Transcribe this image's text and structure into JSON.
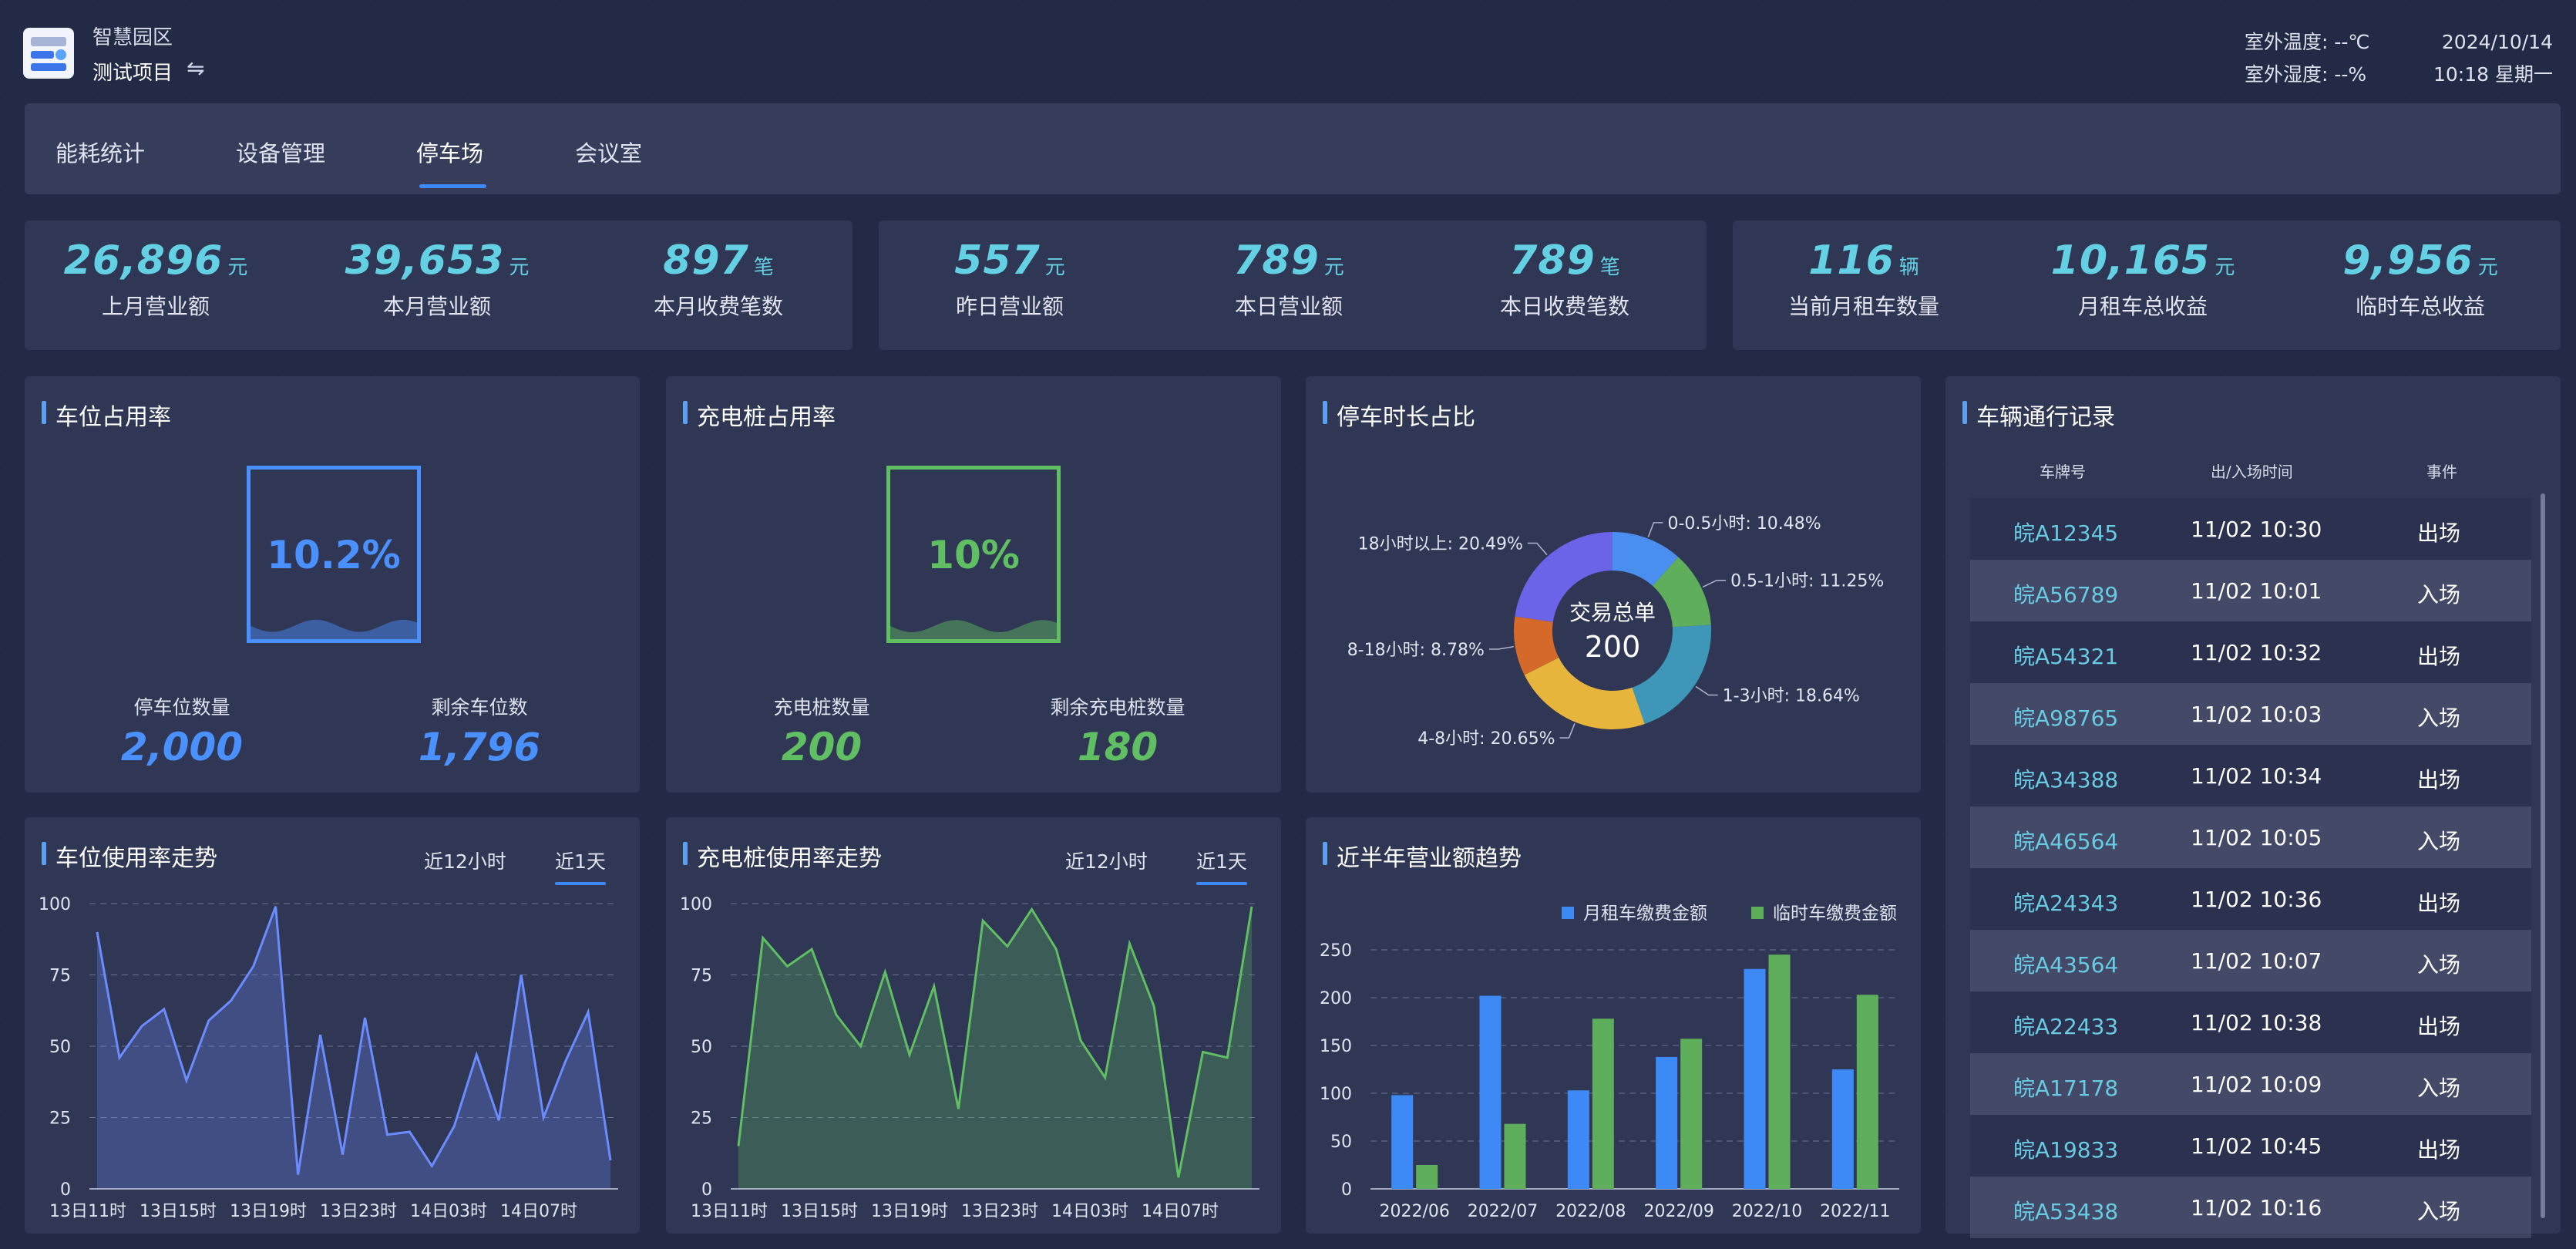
{
  "app": {
    "title": "智慧园区",
    "project": "测试项目",
    "swap_icon": "⇋"
  },
  "weather": {
    "temp_label": "室外温度:",
    "temp_value": "--℃",
    "humidity_label": "室外湿度:",
    "humidity_value": "--%",
    "date": "2024/10/14",
    "time_week": "10:18 星期一"
  },
  "tabs": [
    {
      "label": "能耗统计",
      "active": false
    },
    {
      "label": "设备管理",
      "active": false
    },
    {
      "label": "停车场",
      "active": true
    },
    {
      "label": "会议室",
      "active": false
    }
  ],
  "kpis": [
    {
      "value": "26,896",
      "unit": "元",
      "label": "上月营业额"
    },
    {
      "value": "39,653",
      "unit": "元",
      "label": "本月营业额"
    },
    {
      "value": "897",
      "unit": "笔",
      "label": "本月收费笔数"
    },
    {
      "value": "557",
      "unit": "元",
      "label": "昨日营业额"
    },
    {
      "value": "789",
      "unit": "元",
      "label": "本日营业额"
    },
    {
      "value": "789",
      "unit": "笔",
      "label": "本日收费笔数"
    },
    {
      "value": "116",
      "unit": "辆",
      "label": "当前月租车数量"
    },
    {
      "value": "10,165",
      "unit": "元",
      "label": "月租车总收益"
    },
    {
      "value": "9,956",
      "unit": "元",
      "label": "临时车总收益"
    }
  ],
  "parking_occupancy": {
    "title": "车位占用率",
    "percent_text": "10.2%",
    "fill_fraction": 0.102,
    "total_label": "停车位数量",
    "total_value": "2,000",
    "remain_label": "剩余车位数",
    "remain_value": "1,796",
    "color": "#4a90ff"
  },
  "charger_occupancy": {
    "title": "充电桩占用率",
    "percent_text": "10%",
    "fill_fraction": 0.1,
    "total_label": "充电桩数量",
    "total_value": "200",
    "remain_label": "剩余充电桩数量",
    "remain_value": "180",
    "color": "#5fbf62"
  },
  "duration_share": {
    "title": "停车时长占比",
    "center_label": "交易总单",
    "center_value": "200"
  },
  "parking_trend": {
    "title": "车位使用率走势",
    "toggle_12h": "近12小时",
    "toggle_1d": "近1天"
  },
  "charger_trend": {
    "title": "充电桩使用率走势",
    "toggle_12h": "近12小时",
    "toggle_1d": "近1天"
  },
  "revenue_trend": {
    "title": "近半年营业额趋势"
  },
  "records": {
    "title": "车辆通行记录",
    "headers": {
      "plate": "车牌号",
      "time": "出/入场时间",
      "event": "事件"
    },
    "rows": [
      {
        "plate": "皖A12345",
        "time": "11/02 10:30",
        "event": "出场"
      },
      {
        "plate": "皖A56789",
        "time": "11/02 10:01",
        "event": "入场"
      },
      {
        "plate": "皖A54321",
        "time": "11/02 10:32",
        "event": "出场"
      },
      {
        "plate": "皖A98765",
        "time": "11/02 10:03",
        "event": "入场"
      },
      {
        "plate": "皖A34388",
        "time": "11/02 10:34",
        "event": "出场"
      },
      {
        "plate": "皖A46564",
        "time": "11/02 10:05",
        "event": "入场"
      },
      {
        "plate": "皖A24343",
        "time": "11/02 10:36",
        "event": "出场"
      },
      {
        "plate": "皖A43564",
        "time": "11/02 10:07",
        "event": "入场"
      },
      {
        "plate": "皖A22433",
        "time": "11/02 10:38",
        "event": "出场"
      },
      {
        "plate": "皖A17178",
        "time": "11/02 10:09",
        "event": "入场"
      },
      {
        "plate": "皖A19833",
        "time": "11/02 10:45",
        "event": "出场"
      },
      {
        "plate": "皖A53438",
        "time": "11/02 10:16",
        "event": "入场"
      }
    ]
  },
  "chart_data": [
    {
      "type": "pie",
      "title": "停车时长占比",
      "categories": [
        "0-0.5小时",
        "0.5-1小时",
        "1-3小时",
        "4-8小时",
        "8-18小时",
        "18小时以上"
      ],
      "values": [
        10.48,
        11.25,
        18.64,
        20.65,
        8.78,
        20.49
      ],
      "labels": [
        "0-0.5小时: 10.48%",
        "0.5-1小时: 11.25%",
        "1-3小时: 18.64%",
        "4-8小时: 20.65%",
        "8-18小时: 8.78%",
        "18小时以上: 20.49%"
      ],
      "colors": [
        "#4a8ff0",
        "#5fae5c",
        "#3e96b8",
        "#e8b53c",
        "#d4692a",
        "#6b63e8"
      ]
    },
    {
      "type": "area",
      "title": "车位使用率走势",
      "x_ticks": [
        "13日11时",
        "13日15时",
        "13日19时",
        "13日23时",
        "14日03时",
        "14日07时"
      ],
      "ylim": [
        0,
        100
      ],
      "y_ticks": [
        0,
        25,
        50,
        75,
        100
      ],
      "values": [
        90,
        46,
        57,
        63,
        38,
        59,
        66,
        78,
        99,
        5,
        54,
        12,
        60,
        19,
        20,
        8,
        22,
        47,
        24,
        75,
        25,
        45,
        62,
        10
      ],
      "color": "#6b8cff"
    },
    {
      "type": "area",
      "title": "充电桩使用率走势",
      "x_ticks": [
        "13日11时",
        "13日15时",
        "13日19时",
        "13日23时",
        "14日03时",
        "14日07时"
      ],
      "ylim": [
        0,
        100
      ],
      "y_ticks": [
        0,
        25,
        50,
        75,
        100
      ],
      "values": [
        15,
        88,
        78,
        84,
        61,
        50,
        76,
        47,
        71,
        28,
        94,
        85,
        98,
        84,
        52,
        39,
        86,
        64,
        4,
        48,
        46,
        99
      ],
      "color": "#5fbf62"
    },
    {
      "type": "bar",
      "title": "近半年营业额趋势",
      "categories": [
        "2022/06",
        "2022/07",
        "2022/08",
        "2022/09",
        "2022/10",
        "2022/11"
      ],
      "ylim": [
        0,
        250
      ],
      "y_ticks": [
        0,
        50,
        100,
        150,
        200,
        250
      ],
      "series": [
        {
          "name": "月租车缴费金额",
          "values": [
            98,
            202,
            103,
            138,
            230,
            125
          ],
          "color": "#3d8af7"
        },
        {
          "name": "临时车缴费金额",
          "values": [
            25,
            68,
            178,
            157,
            245,
            203
          ],
          "color": "#5fae5c"
        }
      ]
    }
  ]
}
